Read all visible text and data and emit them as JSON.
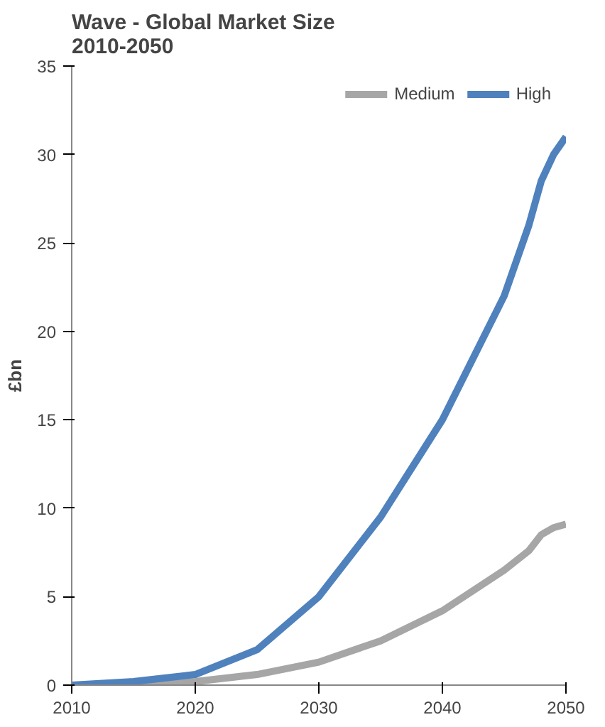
{
  "chart_data": {
    "type": "line",
    "title": "Wave - Global Market Size 2010-2050",
    "ylabel": "£bn",
    "x": [
      2010,
      2015,
      2020,
      2025,
      2030,
      2035,
      2040,
      2045,
      2047,
      2048,
      2049,
      2050
    ],
    "series": [
      {
        "name": "Medium",
        "color": "#a6a6a6",
        "values": [
          0,
          0,
          0.2,
          0.6,
          1.3,
          2.5,
          4.2,
          6.5,
          7.6,
          8.5,
          8.9,
          9.1
        ]
      },
      {
        "name": "High",
        "color": "#4f81bd",
        "values": [
          0,
          0.2,
          0.6,
          2,
          5,
          9.5,
          15,
          22,
          26,
          28.5,
          30,
          31
        ]
      }
    ],
    "xlim": [
      2010,
      2050
    ],
    "xticks": [
      2010,
      2020,
      2030,
      2040,
      2050
    ],
    "ylim": [
      0,
      35
    ],
    "yticks": [
      0,
      5,
      10,
      15,
      20,
      25,
      30,
      35
    ],
    "grid": false,
    "legend": "top right",
    "line_style": "solid",
    "marker": "none"
  }
}
